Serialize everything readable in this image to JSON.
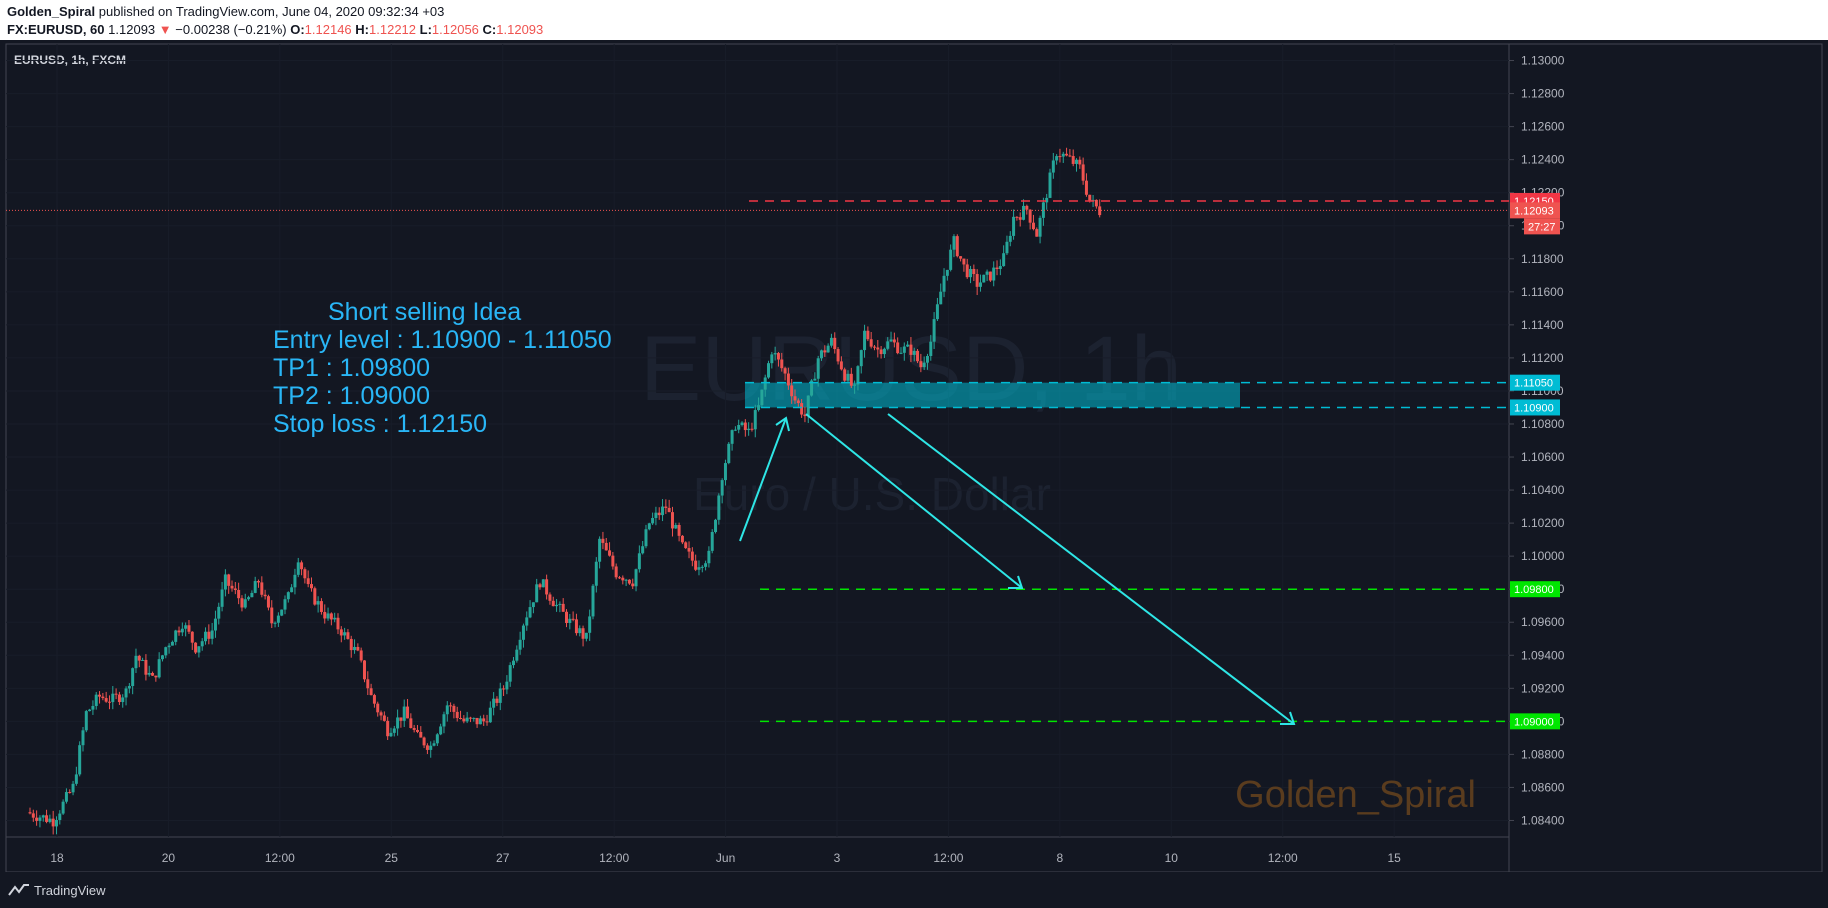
{
  "header": {
    "author": "Golden_Spiral",
    "published": "published on TradingView.com, June 04, 2020 09:32:34 +03",
    "symbol": "FX:EURUSD, 60",
    "last": "1.12093",
    "arrow": "▼",
    "change": "−0.00238 (−0.21%)",
    "o_label": "O:",
    "o": "1.12146",
    "h_label": "H:",
    "h": "1.12212",
    "l_label": "L:",
    "l": "1.12056",
    "c_label": "C:",
    "c": "1.12093"
  },
  "legend": {
    "symbol_line": "EURUSD, 1h, FXCM"
  },
  "watermark": {
    "symbol": "EURUSD, 1h",
    "description": "Euro / U.S. Dollar"
  },
  "signature": "Golden_Spiral",
  "footer": {
    "brand": "TradingView"
  },
  "idea": {
    "lines": [
      "Short selling Idea",
      "Entry level : 1.10900 - 1.11050",
      "TP1 : 1.09800",
      "TP2 : 1.09000",
      "Stop loss : 1.12150"
    ]
  },
  "colors": {
    "background": "#131722",
    "bull": "#26a69a",
    "bear": "#ef5350",
    "stop": "#f23645",
    "entry": "#00bcd4",
    "target": "#00e600",
    "arrow": "#2ee6e6",
    "idea_text": "#29b6f6",
    "signature": "#5a3c1e"
  },
  "chart_data": {
    "type": "candlestick",
    "symbol": "EURUSD",
    "timeframe": "1h",
    "ylim": [
      1.083,
      1.131
    ],
    "y_ticks": [
      "1.13000",
      "1.12800",
      "1.12600",
      "1.12400",
      "1.12200",
      "1.12000",
      "1.11800",
      "1.11600",
      "1.11400",
      "1.11200",
      "1.11000",
      "1.10800",
      "1.10600",
      "1.10400",
      "1.10200",
      "1.10000",
      "1.09800",
      "1.09600",
      "1.09400",
      "1.09200",
      "1.09000",
      "1.08800",
      "1.08600",
      "1.08400"
    ],
    "x_ticks": [
      "18",
      "20",
      "12:00",
      "25",
      "27",
      "12:00",
      "Jun",
      "3",
      "12:00",
      "8",
      "10",
      "12:00",
      "15"
    ],
    "price_path": [
      [
        0,
        1.0845
      ],
      [
        8,
        1.084
      ],
      [
        14,
        1.086
      ],
      [
        18,
        1.0905
      ],
      [
        22,
        1.0915
      ],
      [
        26,
        1.0913
      ],
      [
        30,
        1.0918
      ],
      [
        33,
        1.094
      ],
      [
        38,
        1.0925
      ],
      [
        42,
        1.0945
      ],
      [
        47,
        1.096
      ],
      [
        51,
        1.0945
      ],
      [
        56,
        1.0955
      ],
      [
        60,
        1.0985
      ],
      [
        66,
        1.097
      ],
      [
        70,
        1.0985
      ],
      [
        74,
        1.096
      ],
      [
        79,
        1.0975
      ],
      [
        82,
        1.1
      ],
      [
        85,
        1.098
      ],
      [
        90,
        1.0965
      ],
      [
        95,
        1.0955
      ],
      [
        100,
        1.094
      ],
      [
        104,
        1.0915
      ],
      [
        109,
        1.0895
      ],
      [
        114,
        1.0905
      ],
      [
        118,
        1.089
      ],
      [
        122,
        1.0885
      ],
      [
        127,
        1.091
      ],
      [
        132,
        1.09
      ],
      [
        138,
        1.09
      ],
      [
        144,
        1.092
      ],
      [
        150,
        1.096
      ],
      [
        155,
        1.0985
      ],
      [
        160,
        1.097
      ],
      [
        164,
        1.096
      ],
      [
        169,
        1.095
      ],
      [
        173,
        1.101
      ],
      [
        178,
        1.099
      ],
      [
        183,
        1.0985
      ],
      [
        188,
        1.102
      ],
      [
        193,
        1.103
      ],
      [
        198,
        1.1005
      ],
      [
        202,
        1.0995
      ],
      [
        206,
        1.1
      ],
      [
        210,
        1.105
      ],
      [
        214,
        1.108
      ],
      [
        218,
        1.1075
      ],
      [
        221,
        1.109
      ],
      [
        225,
        1.1125
      ],
      [
        229,
        1.111
      ],
      [
        232,
        1.1095
      ],
      [
        235,
        1.1085
      ],
      [
        239,
        1.112
      ],
      [
        243,
        1.113
      ],
      [
        247,
        1.111
      ],
      [
        250,
        1.11
      ],
      [
        253,
        1.1135
      ],
      [
        257,
        1.1125
      ],
      [
        261,
        1.113
      ],
      [
        264,
        1.1125
      ],
      [
        267,
        1.1125
      ],
      [
        270,
        1.1115
      ],
      [
        273,
        1.113
      ],
      [
        277,
        1.117
      ],
      [
        280,
        1.119
      ],
      [
        283,
        1.1175
      ],
      [
        287,
        1.1165
      ],
      [
        291,
        1.117
      ],
      [
        295,
        1.118
      ],
      [
        298,
        1.1205
      ],
      [
        302,
        1.121
      ],
      [
        305,
        1.1195
      ],
      [
        308,
        1.122
      ],
      [
        311,
        1.1245
      ],
      [
        315,
        1.124
      ],
      [
        318,
        1.1235
      ],
      [
        321,
        1.1215
      ],
      [
        324,
        1.1209
      ]
    ],
    "last_price": 1.12093,
    "countdown": "27:27",
    "levels": [
      {
        "name": "Stop loss",
        "value": 1.1215,
        "label": "1.12150",
        "style": "dashed",
        "color_key": "stop"
      },
      {
        "name": "Entry high",
        "value": 1.1105,
        "label": "1.11050",
        "style": "dashed",
        "color_key": "entry"
      },
      {
        "name": "Entry low",
        "value": 1.109,
        "label": "1.10900",
        "style": "dashed",
        "color_key": "entry"
      },
      {
        "name": "TP1",
        "value": 1.098,
        "label": "1.09800",
        "style": "dashed",
        "color_key": "target"
      },
      {
        "name": "TP2",
        "value": 1.09,
        "label": "1.09000",
        "style": "dashed",
        "color_key": "target"
      }
    ],
    "zone": {
      "low": 1.109,
      "high": 1.1105
    },
    "current": {
      "label": "1.12093",
      "value": 1.12093
    }
  }
}
